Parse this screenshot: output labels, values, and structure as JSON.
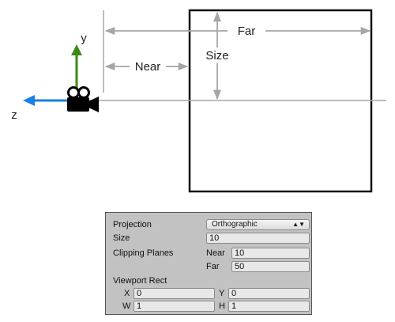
{
  "diagram": {
    "axes": {
      "y_label": "y",
      "z_label": "z"
    },
    "labels": {
      "far": "Far",
      "near": "Near",
      "size": "Size"
    },
    "colors": {
      "y_axis": "#3a8a17",
      "z_axis": "#1a7fe6",
      "guide": "#a6a6a6",
      "frame": "#111111"
    },
    "icons": {
      "camera": "camera-icon"
    }
  },
  "inspector": {
    "projection": {
      "label": "Projection",
      "value": "Orthographic"
    },
    "size": {
      "label": "Size",
      "value": "10"
    },
    "clipping_planes": {
      "label": "Clipping Planes",
      "near_label": "Near",
      "near_value": "10",
      "far_label": "Far",
      "far_value": "50"
    },
    "viewport_rect": {
      "label": "Viewport Rect",
      "x_label": "X",
      "x_value": "0",
      "y_label": "Y",
      "y_value": "0",
      "w_label": "W",
      "w_value": "1",
      "h_label": "H",
      "h_value": "1"
    }
  }
}
